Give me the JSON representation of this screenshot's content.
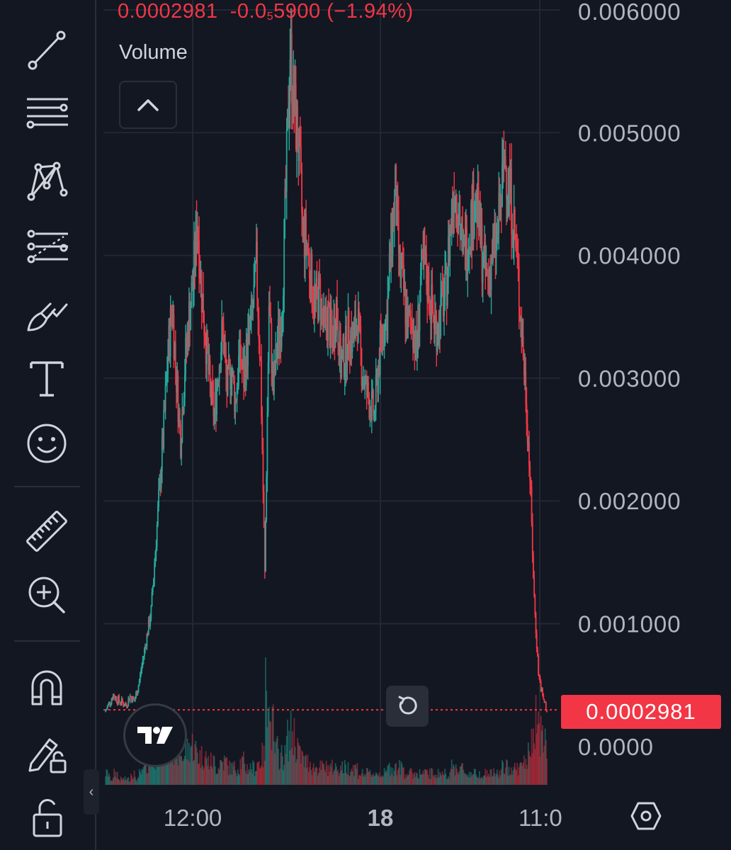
{
  "legend": {
    "price": "0.0002981",
    "change_prefix": "-0.0",
    "change_subscript": "5",
    "change_suffix": "5900",
    "change_percent": "(−1.94%)"
  },
  "volume_label": "Volume",
  "price_tag": "0.0002981",
  "colors": {
    "background": "#131722",
    "up": "#26a69a",
    "down": "#f23645",
    "grid": "#232733",
    "axis_text": "#b2b5be"
  },
  "toolbar": {
    "tools": [
      "trend-line-icon",
      "horizontal-lines-icon",
      "pattern-icon",
      "fib-retracement-icon",
      "brush-icon",
      "text-icon",
      "emoji-icon",
      "ruler-icon",
      "zoom-in-icon",
      "magnet-icon",
      "lock-drawings-icon",
      "lock-icon"
    ]
  },
  "chart_data": {
    "type": "candlestick",
    "y_ticks": [
      {
        "value": 0.006,
        "label": "0.006000"
      },
      {
        "value": 0.005,
        "label": "0.005000"
      },
      {
        "value": 0.004,
        "label": "0.004000"
      },
      {
        "value": 0.003,
        "label": "0.003000"
      },
      {
        "value": 0.002,
        "label": "0.002000"
      },
      {
        "value": 0.001,
        "label": "0.001000"
      },
      {
        "value": 0.0,
        "label": "0.0000"
      }
    ],
    "ylim": [
      0,
      0.006
    ],
    "x_ticks": [
      {
        "label": "12:00",
        "bold": false
      },
      {
        "label": "18",
        "bold": true
      },
      {
        "label": "11:0",
        "bold": false
      }
    ],
    "last_price": 0.0002981,
    "price_series": [
      0.00028,
      0.00035,
      0.00042,
      0.00038,
      0.00036,
      0.00034,
      0.00041,
      0.00037,
      0.0005,
      0.0007,
      0.0009,
      0.0011,
      0.0016,
      0.0021,
      0.0026,
      0.0032,
      0.0036,
      0.003,
      0.0025,
      0.0031,
      0.0035,
      0.0038,
      0.0043,
      0.0037,
      0.0033,
      0.0029,
      0.0027,
      0.0031,
      0.0034,
      0.0029,
      0.0031,
      0.0028,
      0.0032,
      0.003,
      0.0033,
      0.0035,
      0.0039,
      0.0031,
      0.0014,
      0.0036,
      0.0029,
      0.0033,
      0.0035,
      0.0045,
      0.0057,
      0.0052,
      0.0049,
      0.0042,
      0.0041,
      0.0038,
      0.0036,
      0.0037,
      0.0034,
      0.0035,
      0.0033,
      0.0036,
      0.0031,
      0.0032,
      0.0034,
      0.0033,
      0.0035,
      0.0031,
      0.0029,
      0.0028,
      0.0027,
      0.0031,
      0.0034,
      0.0035,
      0.0041,
      0.0045,
      0.0039,
      0.0037,
      0.0034,
      0.0035,
      0.0032,
      0.0038,
      0.0039,
      0.0037,
      0.0035,
      0.0034,
      0.0036,
      0.0037,
      0.0042,
      0.0046,
      0.0044,
      0.004,
      0.0041,
      0.0043,
      0.0045,
      0.0042,
      0.0039,
      0.0038,
      0.004,
      0.0041,
      0.0044,
      0.0048,
      0.0046,
      0.0043,
      0.0039,
      0.0034,
      0.0029,
      0.0022,
      0.0012,
      0.0006,
      0.0004,
      0.0003
    ],
    "volume_series": [
      2,
      1,
      2,
      1,
      1,
      1,
      2,
      1,
      2,
      3,
      4,
      5,
      6,
      7,
      8,
      9,
      7,
      6,
      5,
      6,
      7,
      6,
      5,
      5,
      4,
      4,
      3,
      4,
      4,
      3,
      3,
      3,
      4,
      3,
      3,
      3,
      4,
      5,
      20,
      10,
      6,
      5,
      5,
      8,
      9,
      7,
      5,
      4,
      4,
      3,
      3,
      3,
      3,
      3,
      3,
      3,
      3,
      3,
      3,
      3,
      2,
      2,
      2,
      2,
      2,
      2,
      2,
      3,
      3,
      3,
      3,
      2,
      2,
      2,
      2,
      2,
      2,
      2,
      2,
      2,
      2,
      2,
      3,
      3,
      3,
      2,
      2,
      2,
      2,
      2,
      2,
      2,
      2,
      2,
      3,
      3,
      3,
      3,
      3,
      4,
      5,
      7,
      12,
      9,
      7,
      5
    ]
  }
}
